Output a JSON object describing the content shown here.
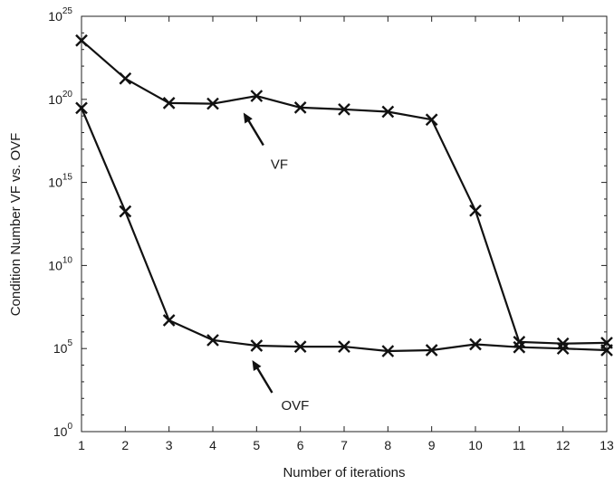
{
  "chart_data": {
    "type": "line",
    "xlabel": "Number of iterations",
    "ylabel": "Condition Number VF vs. OVF",
    "yscale": "log",
    "xlim": [
      1,
      13
    ],
    "ylim_exponent": [
      0,
      25
    ],
    "x_ticks": [
      "1",
      "2",
      "3",
      "4",
      "5",
      "6",
      "7",
      "8",
      "9",
      "10",
      "11",
      "12",
      "13"
    ],
    "y_ticks": [
      {
        "base": "10",
        "exp": "0",
        "value": 1
      },
      {
        "base": "10",
        "exp": "5",
        "value": 100000
      },
      {
        "base": "10",
        "exp": "10",
        "value": 10000000000
      },
      {
        "base": "10",
        "exp": "15",
        "value": 1000000000000000.0
      },
      {
        "base": "10",
        "exp": "20",
        "value": 1e+20
      },
      {
        "base": "10",
        "exp": "25",
        "value": 1e+25
      }
    ],
    "grid": false,
    "marker": "x",
    "x": [
      1,
      2,
      3,
      4,
      5,
      6,
      7,
      8,
      9,
      10,
      11,
      12,
      13
    ],
    "series": [
      {
        "name": "VF",
        "values": [
          3.5e+23,
          1.8e+21,
          6e+19,
          5.5e+19,
          1.6e+20,
          3.2e+19,
          2.5e+19,
          1.8e+19,
          6e+18,
          20000000000000.0,
          250000.0,
          200000.0,
          220000.0
        ]
      },
      {
        "name": "OVF",
        "values": [
          3e+19,
          18000000000000.0,
          5000000.0,
          320000.0,
          150000.0,
          130000.0,
          130000.0,
          70000.0,
          80000.0,
          180000.0,
          120000.0,
          100000.0,
          80000.0
        ]
      }
    ],
    "annotations": [
      {
        "text": "VF",
        "series": "VF",
        "x": 4.7,
        "y_exponent": 19.2
      },
      {
        "text": "OVF",
        "series": "OVF",
        "x": 4.9,
        "y_exponent": 4.3
      }
    ],
    "colors": {
      "line": "#111111",
      "axes": "#222222",
      "background": "#ffffff"
    }
  }
}
